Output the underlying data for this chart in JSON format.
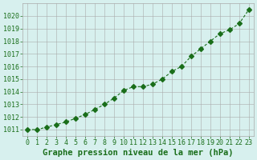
{
  "x": [
    0,
    1,
    2,
    3,
    4,
    5,
    6,
    7,
    8,
    9,
    10,
    11,
    12,
    13,
    14,
    15,
    16,
    17,
    18,
    19,
    20,
    21,
    22,
    23
  ],
  "y": [
    1011.0,
    1011.0,
    1011.2,
    1011.4,
    1011.6,
    1011.9,
    1012.2,
    1012.6,
    1013.0,
    1013.5,
    1014.1,
    1014.4,
    1014.4,
    1014.6,
    1015.0,
    1015.6,
    1016.0,
    1016.8,
    1017.4,
    1018.0,
    1018.6,
    1018.9,
    1019.4,
    1020.5
  ],
  "line_color": "#1a6e1a",
  "marker": "D",
  "marker_size": 3,
  "bg_color": "#d7f0ee",
  "grid_color": "#aaaaaa",
  "xlabel": "Graphe pression niveau de la mer (hPa)",
  "xlabel_color": "#1a6e1a",
  "tick_color": "#1a6e1a",
  "ylim": [
    1010.5,
    1021.0
  ],
  "yticks": [
    1011,
    1012,
    1013,
    1014,
    1015,
    1016,
    1017,
    1018,
    1019,
    1020
  ],
  "xlim": [
    -0.5,
    23.5
  ],
  "xticks": [
    0,
    1,
    2,
    3,
    4,
    5,
    6,
    7,
    8,
    9,
    10,
    11,
    12,
    13,
    14,
    15,
    16,
    17,
    18,
    19,
    20,
    21,
    22,
    23
  ],
  "tick_fontsize": 6,
  "xlabel_fontsize": 7.5
}
